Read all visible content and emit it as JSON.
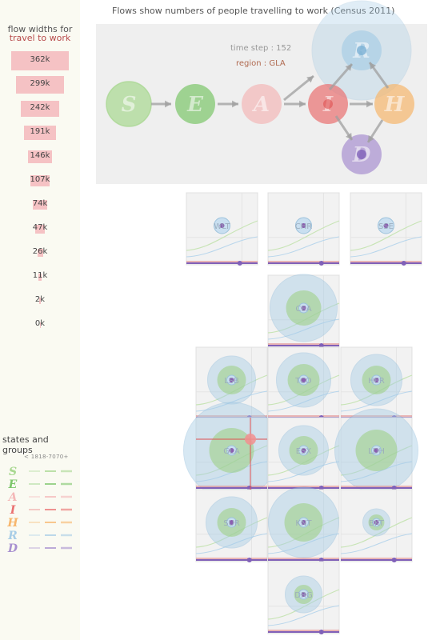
{
  "header": {
    "title": "Flows show numbers of people travelling to work (Census 2011)"
  },
  "overview": {
    "time_step": "time step : 152",
    "region": "region : GLA",
    "states": [
      {
        "letter": "S",
        "color": "#a8d890"
      },
      {
        "letter": "E",
        "color": "#7cc66a"
      },
      {
        "letter": "A",
        "color": "#f4b8b8"
      },
      {
        "letter": "I",
        "color": "#ea7070"
      },
      {
        "letter": "H",
        "color": "#f7b66c"
      },
      {
        "letter": "R",
        "color": "#a8cde6"
      },
      {
        "letter": "D",
        "color": "#a890d0"
      }
    ]
  },
  "legend": {
    "title_line1": "flow widths for",
    "title_line2": "travel to work",
    "widths": [
      "362k",
      "299k",
      "242k",
      "191k",
      "146k",
      "107k",
      "74k",
      "47k",
      "26k",
      "11k",
      "2k",
      "0k"
    ],
    "states_title": "states and groups",
    "range_label": "< 1818-7070+",
    "state_letters": [
      "S",
      "E",
      "A",
      "I",
      "H",
      "R",
      "D"
    ]
  },
  "panels": [
    {
      "id": "WLT",
      "label": "WLT"
    },
    {
      "id": "CHR",
      "label": "CHR"
    },
    {
      "id": "SSE",
      "label": "SSE"
    },
    {
      "id": "CEA",
      "label": "CEA"
    },
    {
      "id": "LSB",
      "label": "LSB"
    },
    {
      "id": "TCO",
      "label": "TCO"
    },
    {
      "id": "HER",
      "label": "HER"
    },
    {
      "id": "GLA",
      "label": "GLA"
    },
    {
      "id": "ESX",
      "label": "ESX"
    },
    {
      "id": "LDH",
      "label": "LDH"
    },
    {
      "id": "SUR",
      "label": "SUR"
    },
    {
      "id": "KNT",
      "label": "KNT"
    },
    {
      "id": "BKT",
      "label": "BKT"
    },
    {
      "id": "DRG",
      "label": "DRG"
    }
  ]
}
